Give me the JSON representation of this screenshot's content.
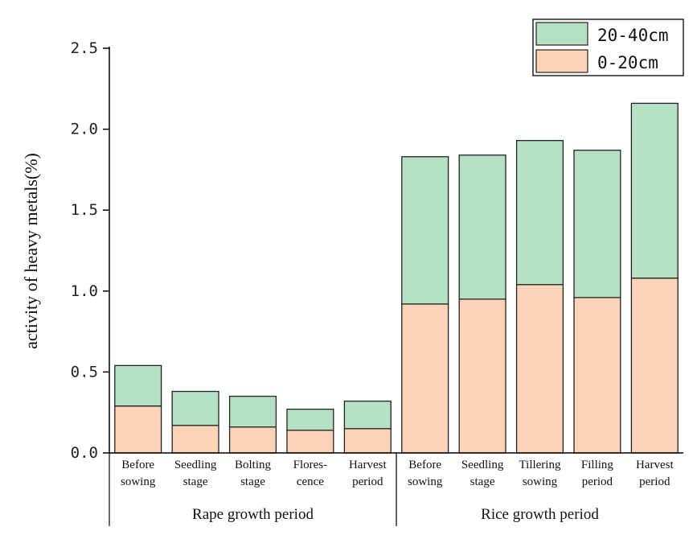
{
  "chart_data": {
    "type": "bar",
    "stacked": true,
    "title": "",
    "xlabel": "",
    "ylabel": "activity of heavy metals(%)",
    "ylim": [
      0,
      2.5
    ],
    "yticks": [
      "0.0",
      "0.5",
      "1.0",
      "1.5",
      "2.0",
      "2.5"
    ],
    "grid": false,
    "legend_position": "top-right",
    "categories": [
      [
        "Before",
        "sowing"
      ],
      [
        "Seedling",
        "stage"
      ],
      [
        "Bolting",
        "stage"
      ],
      [
        "Flores-",
        "cence"
      ],
      [
        "Harvest",
        "period"
      ],
      [
        "Before",
        "sowing"
      ],
      [
        "Seedling",
        "stage"
      ],
      [
        "Tillering",
        "sowing"
      ],
      [
        "Filling",
        "period"
      ],
      [
        "Harvest",
        "period"
      ]
    ],
    "groups": [
      {
        "label": "Rape growth period",
        "count": 5
      },
      {
        "label": "Rice growth period",
        "count": 5
      }
    ],
    "series": [
      {
        "name": "0-20cm",
        "color": "#fbd3b6",
        "values": [
          0.29,
          0.17,
          0.16,
          0.14,
          0.15,
          0.92,
          0.95,
          1.04,
          0.96,
          1.08
        ]
      },
      {
        "name": "20-40cm",
        "color": "#b5e0c4",
        "values": [
          0.25,
          0.21,
          0.19,
          0.13,
          0.17,
          0.91,
          0.89,
          0.89,
          0.91,
          1.08
        ]
      }
    ],
    "legend_order": [
      "20-40cm",
      "0-20cm"
    ]
  }
}
